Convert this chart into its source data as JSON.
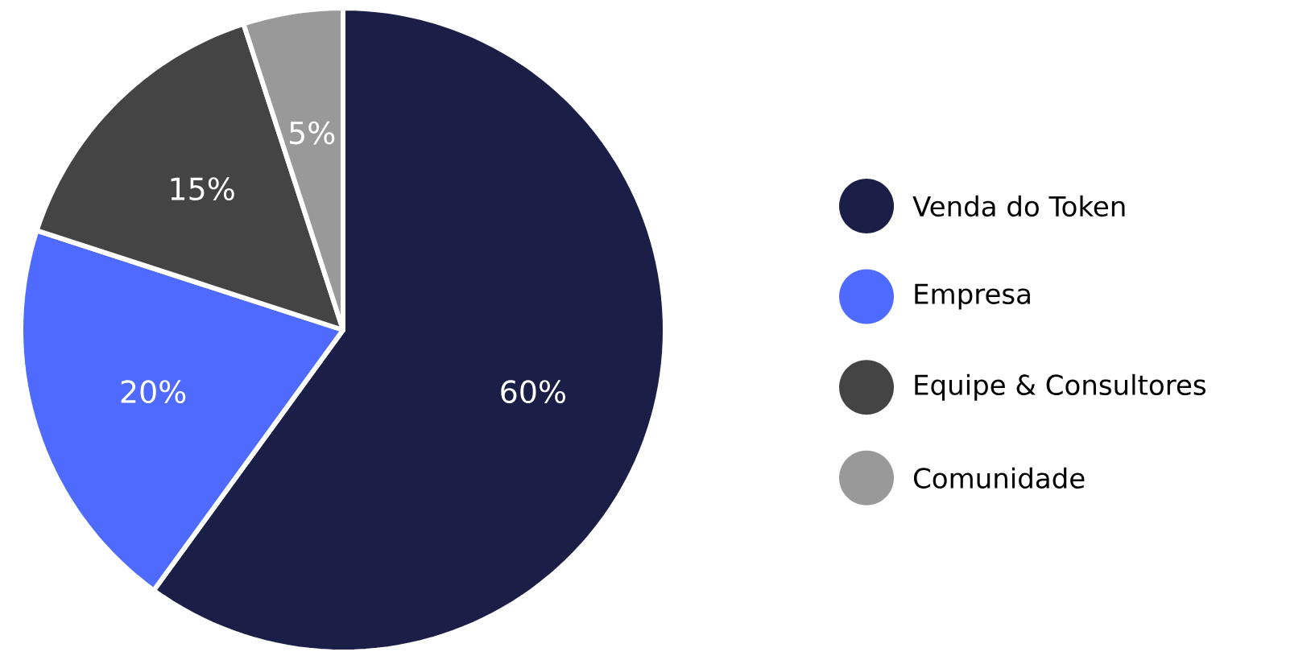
{
  "chart_data": {
    "type": "pie",
    "categories": [
      "Venda do Token",
      "Empresa",
      "Equipe & Consultores",
      "Comunidade"
    ],
    "values": [
      60,
      20,
      15,
      5
    ],
    "colors": [
      "#1b1f47",
      "#4f6bff",
      "#444444",
      "#999999"
    ],
    "value_labels": [
      "60%",
      "20%",
      "15%",
      "5%"
    ],
    "legend": "right"
  }
}
